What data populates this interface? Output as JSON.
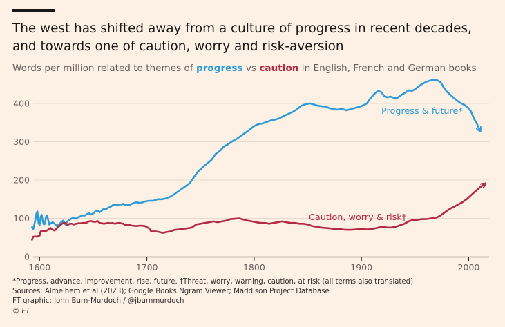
{
  "title": "The west has shifted away from a culture of progress in recent decades, and towards one of caution, worry and risk-aversion",
  "subtitle": {
    "prefix": "Words per million related to themes of ",
    "progress_word": "progress",
    "middle": " vs ",
    "caution_word": "caution",
    "suffix": " in English, French and German books"
  },
  "colors": {
    "background": "#fdf1e6",
    "progress": "#2e9bd6",
    "caution": "#b22a43",
    "gridline": "#e6d9ce",
    "axis": "#1a1817",
    "tick_text": "#66605c"
  },
  "footnotes": {
    "definitions": "*Progress, advance, improvement, rise, future. †Threat, worry, warning, caution, at risk (all terms also translated)",
    "sources": "Sources: Almelhem et al (2023); Google Books Ngram Viewer; Maddison Project Database",
    "credit": "FT graphic: John Burn-Murdoch / @jburnmurdoch",
    "copyright": "© FT"
  },
  "chart_data": {
    "type": "line",
    "xlabel": "",
    "ylabel": "",
    "xlim": [
      1594,
      2019
    ],
    "ylim": [
      0,
      470
    ],
    "x_ticks": [
      1600,
      1700,
      1800,
      1900,
      2000
    ],
    "y_ticks": [
      0,
      100,
      200,
      300,
      400
    ],
    "grid": true,
    "series": [
      {
        "name": "Progress & future*",
        "color": "#2e9bd6",
        "arrow_end": true,
        "points": [
          [
            1593,
            77
          ],
          [
            1594,
            71
          ],
          [
            1595,
            83
          ],
          [
            1596,
            95
          ],
          [
            1597,
            112
          ],
          [
            1598,
            118
          ],
          [
            1599,
            88
          ],
          [
            1600,
            82
          ],
          [
            1601,
            104
          ],
          [
            1602,
            109
          ],
          [
            1603,
            92
          ],
          [
            1604,
            84
          ],
          [
            1605,
            86
          ],
          [
            1606,
            104
          ],
          [
            1607,
            108
          ],
          [
            1608,
            96
          ],
          [
            1609,
            84
          ],
          [
            1610,
            86
          ],
          [
            1612,
            90
          ],
          [
            1614,
            86
          ],
          [
            1616,
            80
          ],
          [
            1618,
            84
          ],
          [
            1620,
            90
          ],
          [
            1622,
            94
          ],
          [
            1624,
            84
          ],
          [
            1626,
            92
          ],
          [
            1628,
            96
          ],
          [
            1630,
            100
          ],
          [
            1632,
            102
          ],
          [
            1634,
            99
          ],
          [
            1636,
            103
          ],
          [
            1638,
            105
          ],
          [
            1640,
            108
          ],
          [
            1642,
            107
          ],
          [
            1644,
            111
          ],
          [
            1646,
            113
          ],
          [
            1648,
            110
          ],
          [
            1650,
            113
          ],
          [
            1652,
            118
          ],
          [
            1654,
            120
          ],
          [
            1656,
            116
          ],
          [
            1658,
            120
          ],
          [
            1660,
            126
          ],
          [
            1662,
            124
          ],
          [
            1664,
            128
          ],
          [
            1666,
            130
          ],
          [
            1668,
            134
          ],
          [
            1670,
            136
          ],
          [
            1672,
            135
          ],
          [
            1674,
            136
          ],
          [
            1676,
            136
          ],
          [
            1678,
            138
          ],
          [
            1680,
            135
          ],
          [
            1683,
            134
          ],
          [
            1686,
            138
          ],
          [
            1690,
            142
          ],
          [
            1694,
            140
          ],
          [
            1698,
            144
          ],
          [
            1702,
            146
          ],
          [
            1706,
            146
          ],
          [
            1710,
            150
          ],
          [
            1714,
            150
          ],
          [
            1718,
            152
          ],
          [
            1722,
            157
          ],
          [
            1726,
            164
          ],
          [
            1730,
            172
          ],
          [
            1733,
            178
          ],
          [
            1736,
            184
          ],
          [
            1740,
            192
          ],
          [
            1744,
            208
          ],
          [
            1747,
            220
          ],
          [
            1750,
            228
          ],
          [
            1753,
            236
          ],
          [
            1756,
            243
          ],
          [
            1760,
            252
          ],
          [
            1764,
            268
          ],
          [
            1768,
            276
          ],
          [
            1772,
            288
          ],
          [
            1776,
            294
          ],
          [
            1780,
            302
          ],
          [
            1784,
            308
          ],
          [
            1788,
            316
          ],
          [
            1792,
            324
          ],
          [
            1796,
            332
          ],
          [
            1800,
            341
          ],
          [
            1804,
            346
          ],
          [
            1808,
            348
          ],
          [
            1812,
            352
          ],
          [
            1816,
            356
          ],
          [
            1820,
            358
          ],
          [
            1824,
            362
          ],
          [
            1828,
            368
          ],
          [
            1832,
            373
          ],
          [
            1836,
            378
          ],
          [
            1840,
            385
          ],
          [
            1844,
            394
          ],
          [
            1848,
            398
          ],
          [
            1852,
            400
          ],
          [
            1855,
            398
          ],
          [
            1858,
            395
          ],
          [
            1862,
            393
          ],
          [
            1866,
            392
          ],
          [
            1870,
            388
          ],
          [
            1874,
            385
          ],
          [
            1878,
            384
          ],
          [
            1882,
            386
          ],
          [
            1886,
            382
          ],
          [
            1890,
            385
          ],
          [
            1895,
            389
          ],
          [
            1900,
            393
          ],
          [
            1905,
            400
          ],
          [
            1908,
            412
          ],
          [
            1912,
            425
          ],
          [
            1915,
            432
          ],
          [
            1918,
            431
          ],
          [
            1921,
            420
          ],
          [
            1924,
            416
          ],
          [
            1927,
            418
          ],
          [
            1930,
            415
          ],
          [
            1933,
            414
          ],
          [
            1936,
            420
          ],
          [
            1940,
            427
          ],
          [
            1944,
            434
          ],
          [
            1947,
            433
          ],
          [
            1950,
            437
          ],
          [
            1953,
            444
          ],
          [
            1956,
            450
          ],
          [
            1960,
            456
          ],
          [
            1964,
            460
          ],
          [
            1968,
            462
          ],
          [
            1971,
            460
          ],
          [
            1974,
            455
          ],
          [
            1977,
            440
          ],
          [
            1980,
            430
          ],
          [
            1984,
            420
          ],
          [
            1988,
            410
          ],
          [
            1992,
            402
          ],
          [
            1996,
            396
          ],
          [
            1999,
            390
          ],
          [
            2002,
            380
          ],
          [
            2005,
            360
          ],
          [
            2008,
            345
          ],
          [
            2010,
            332
          ]
        ]
      },
      {
        "name": "Caution, worry & risk†",
        "color": "#b22a43",
        "arrow_end": true,
        "points": [
          [
            1593,
            44
          ],
          [
            1594,
            52
          ],
          [
            1596,
            53
          ],
          [
            1598,
            52
          ],
          [
            1599,
            54
          ],
          [
            1600,
            55
          ],
          [
            1601,
            66
          ],
          [
            1602,
            66
          ],
          [
            1604,
            67
          ],
          [
            1606,
            67
          ],
          [
            1608,
            70
          ],
          [
            1610,
            75
          ],
          [
            1612,
            70
          ],
          [
            1614,
            68
          ],
          [
            1616,
            74
          ],
          [
            1618,
            79
          ],
          [
            1620,
            84
          ],
          [
            1622,
            88
          ],
          [
            1624,
            88
          ],
          [
            1626,
            82
          ],
          [
            1628,
            86
          ],
          [
            1630,
            86
          ],
          [
            1632,
            84
          ],
          [
            1634,
            86
          ],
          [
            1636,
            87
          ],
          [
            1638,
            87
          ],
          [
            1640,
            88
          ],
          [
            1642,
            88
          ],
          [
            1644,
            89
          ],
          [
            1646,
            92
          ],
          [
            1648,
            93
          ],
          [
            1650,
            91
          ],
          [
            1652,
            91
          ],
          [
            1654,
            93
          ],
          [
            1656,
            88
          ],
          [
            1658,
            87
          ],
          [
            1660,
            86
          ],
          [
            1662,
            87
          ],
          [
            1664,
            88
          ],
          [
            1666,
            87
          ],
          [
            1668,
            88
          ],
          [
            1670,
            86
          ],
          [
            1672,
            87
          ],
          [
            1674,
            88
          ],
          [
            1676,
            87
          ],
          [
            1678,
            86
          ],
          [
            1680,
            82
          ],
          [
            1683,
            83
          ],
          [
            1686,
            81
          ],
          [
            1690,
            80
          ],
          [
            1694,
            81
          ],
          [
            1698,
            80
          ],
          [
            1702,
            74
          ],
          [
            1704,
            66
          ],
          [
            1708,
            66
          ],
          [
            1712,
            64
          ],
          [
            1715,
            62
          ],
          [
            1718,
            64
          ],
          [
            1722,
            66
          ],
          [
            1726,
            70
          ],
          [
            1730,
            71
          ],
          [
            1734,
            72
          ],
          [
            1738,
            74
          ],
          [
            1742,
            76
          ],
          [
            1746,
            84
          ],
          [
            1750,
            86
          ],
          [
            1754,
            88
          ],
          [
            1758,
            90
          ],
          [
            1762,
            92
          ],
          [
            1766,
            90
          ],
          [
            1770,
            92
          ],
          [
            1774,
            94
          ],
          [
            1778,
            98
          ],
          [
            1782,
            99
          ],
          [
            1786,
            100
          ],
          [
            1790,
            97
          ],
          [
            1794,
            94
          ],
          [
            1798,
            92
          ],
          [
            1802,
            90
          ],
          [
            1806,
            88
          ],
          [
            1810,
            88
          ],
          [
            1814,
            86
          ],
          [
            1818,
            88
          ],
          [
            1822,
            90
          ],
          [
            1826,
            92
          ],
          [
            1830,
            90
          ],
          [
            1834,
            88
          ],
          [
            1838,
            88
          ],
          [
            1842,
            86
          ],
          [
            1846,
            86
          ],
          [
            1850,
            84
          ],
          [
            1854,
            80
          ],
          [
            1858,
            78
          ],
          [
            1862,
            76
          ],
          [
            1866,
            75
          ],
          [
            1870,
            74
          ],
          [
            1875,
            72
          ],
          [
            1880,
            72
          ],
          [
            1885,
            70
          ],
          [
            1890,
            70
          ],
          [
            1895,
            71
          ],
          [
            1900,
            72
          ],
          [
            1905,
            71
          ],
          [
            1910,
            72
          ],
          [
            1913,
            74
          ],
          [
            1916,
            76
          ],
          [
            1920,
            78
          ],
          [
            1924,
            76
          ],
          [
            1928,
            76
          ],
          [
            1932,
            78
          ],
          [
            1936,
            82
          ],
          [
            1940,
            86
          ],
          [
            1944,
            92
          ],
          [
            1948,
            96
          ],
          [
            1952,
            96
          ],
          [
            1956,
            98
          ],
          [
            1960,
            98
          ],
          [
            1965,
            100
          ],
          [
            1970,
            102
          ],
          [
            1974,
            108
          ],
          [
            1978,
            116
          ],
          [
            1982,
            124
          ],
          [
            1986,
            130
          ],
          [
            1990,
            136
          ],
          [
            1994,
            142
          ],
          [
            1998,
            150
          ],
          [
            2002,
            160
          ],
          [
            2006,
            170
          ],
          [
            2010,
            180
          ],
          [
            2014,
            188
          ]
        ]
      }
    ]
  }
}
